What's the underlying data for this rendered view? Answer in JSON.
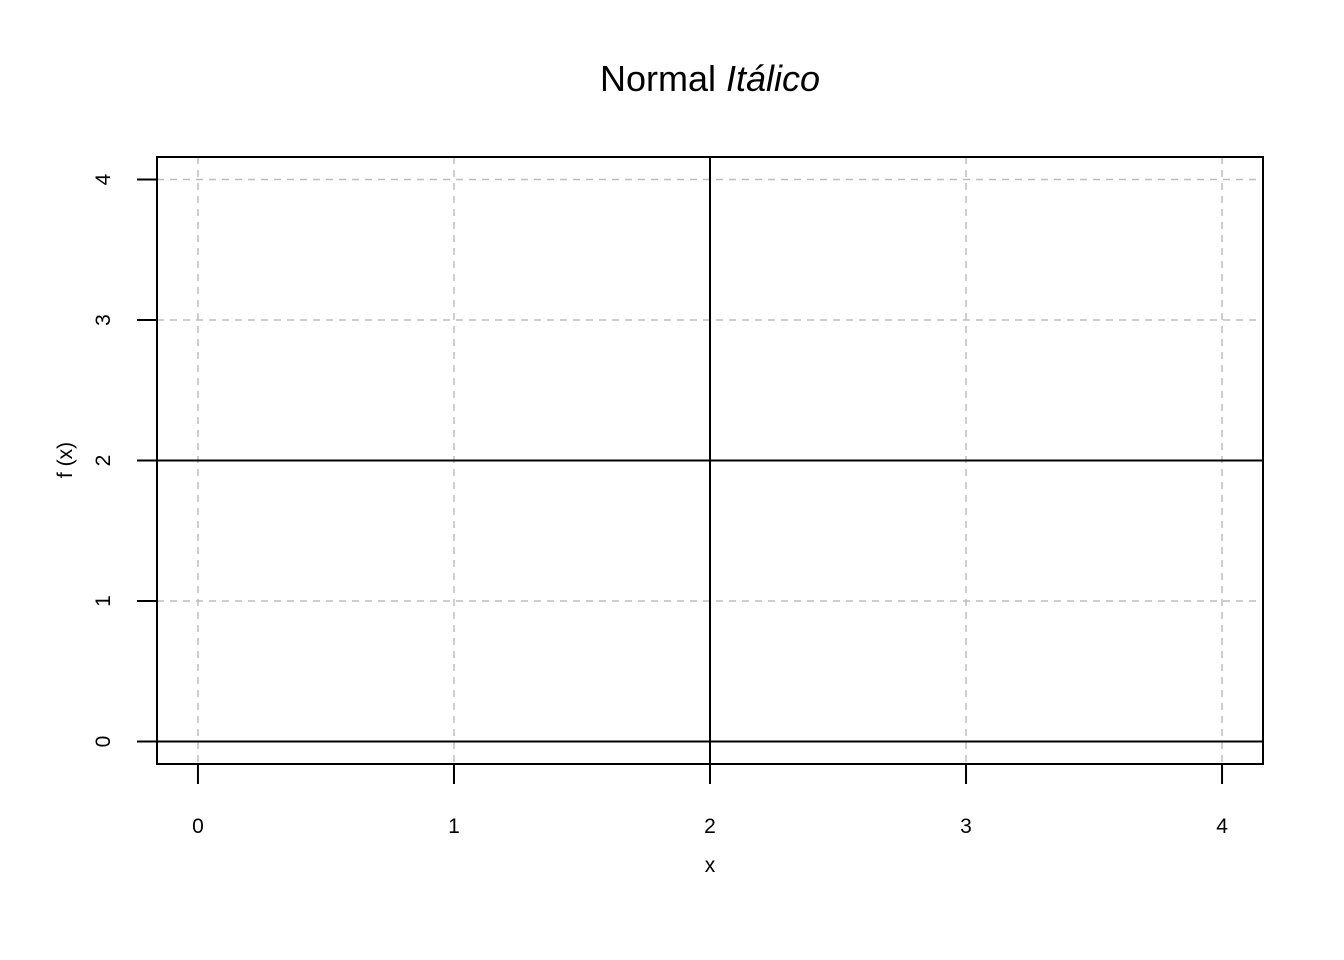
{
  "chart_data": {
    "type": "line",
    "title": {
      "normal": "Normal",
      "italic": "Itálico"
    },
    "xlabel": "x",
    "ylabel": "f (x)",
    "xlim": [
      -0.16,
      4.16
    ],
    "ylim": [
      -0.16,
      4.16
    ],
    "x_ticks": [
      "0",
      "1",
      "2",
      "3",
      "4"
    ],
    "y_ticks": [
      "0",
      "1",
      "2",
      "3",
      "4"
    ],
    "grid": true,
    "grid_style": "dashed",
    "grid_color": "#bebebe",
    "reference_lines": {
      "horizontal": [
        0,
        2
      ],
      "vertical": [
        2
      ]
    },
    "series": []
  }
}
